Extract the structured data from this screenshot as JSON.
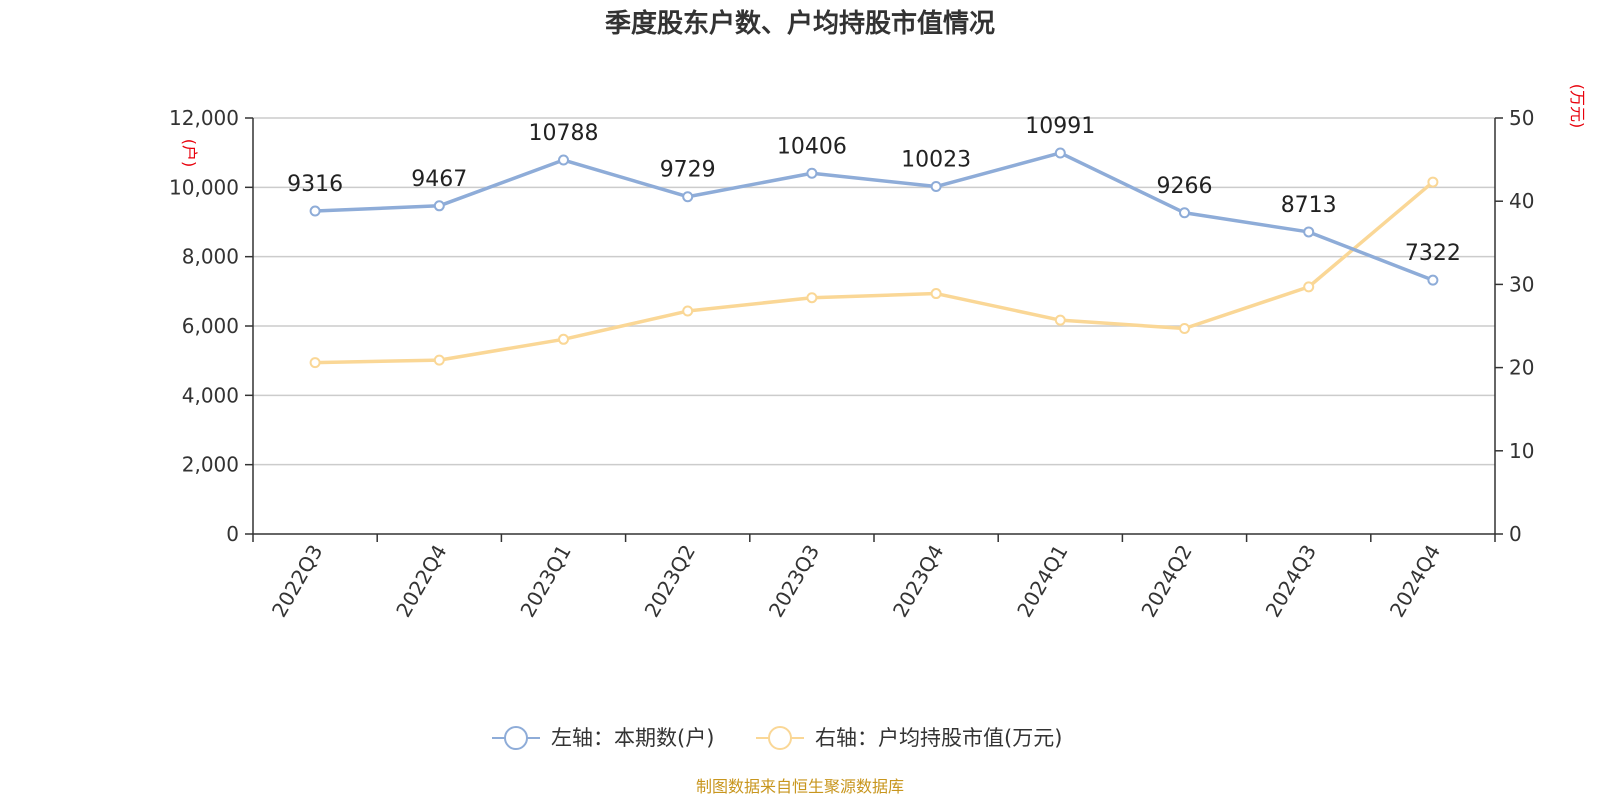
{
  "chart_data": {
    "type": "line",
    "title": "季度股东户数、户均持股市值情况",
    "categories": [
      "2022Q3",
      "2022Q4",
      "2023Q1",
      "2023Q2",
      "2023Q3",
      "2023Q4",
      "2024Q1",
      "2024Q2",
      "2024Q3",
      "2024Q4"
    ],
    "left_axis": {
      "unit": "(户)",
      "min": 0,
      "max": 12000,
      "ticks": [
        0,
        2000,
        4000,
        6000,
        8000,
        10000,
        12000
      ],
      "tick_labels": [
        "0",
        "2,000",
        "4,000",
        "6,000",
        "8,000",
        "10,000",
        "12,000"
      ]
    },
    "right_axis": {
      "unit": "(万元)",
      "min": 0,
      "max": 50,
      "ticks": [
        0,
        10,
        20,
        30,
        40,
        50
      ],
      "tick_labels": [
        "0",
        "10",
        "20",
        "30",
        "40",
        "50"
      ]
    },
    "series": [
      {
        "name": "左轴：本期数(户)",
        "axis": "left",
        "color": "#8eacd8",
        "values": [
          9316,
          9467,
          10788,
          9729,
          10406,
          10023,
          10991,
          9266,
          8713,
          7322
        ],
        "labels": [
          "9316",
          "9467",
          "10788",
          "9729",
          "10406",
          "10023",
          "10991",
          "9266",
          "8713",
          "7322"
        ]
      },
      {
        "name": "右轴：户均持股市值(万元)",
        "axis": "right",
        "color": "#fad796",
        "values": [
          20.6,
          20.9,
          23.4,
          26.8,
          28.4,
          28.9,
          25.7,
          24.7,
          29.7,
          42.3
        ]
      }
    ],
    "grid": true,
    "legend_position": "bottom-center"
  },
  "footer": {
    "source": "制图数据来自恒生聚源数据库"
  }
}
